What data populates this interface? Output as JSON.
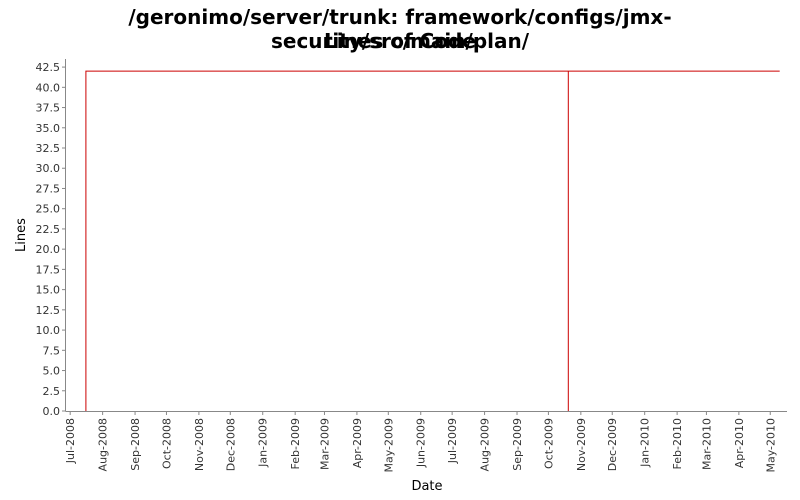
{
  "chart_data": {
    "type": "line",
    "title_lines": [
      "/geronimo/server/trunk: framework/configs/jmx-security/src/main/plan/",
      "Lines of Code"
    ],
    "xlabel": "Date",
    "ylabel": "Lines",
    "ylim": [
      0,
      43.5
    ],
    "y_ticks": [
      "0.0",
      "2.5",
      "5.0",
      "7.5",
      "10.0",
      "12.5",
      "15.0",
      "17.5",
      "20.0",
      "22.5",
      "25.0",
      "27.5",
      "30.0",
      "32.5",
      "35.0",
      "37.5",
      "40.0",
      "42.5"
    ],
    "x_ticks": [
      "Jul-2008",
      "Aug-2008",
      "Sep-2008",
      "Oct-2008",
      "Nov-2008",
      "Dec-2008",
      "Jan-2009",
      "Feb-2009",
      "Mar-2009",
      "Apr-2009",
      "May-2009",
      "Jun-2009",
      "Jul-2009",
      "Aug-2009",
      "Sep-2009",
      "Oct-2009",
      "Nov-2009",
      "Dec-2009",
      "Jan-2010",
      "Feb-2010",
      "Mar-2010",
      "Apr-2010",
      "May-2010"
    ],
    "x_range": [
      "2008-06-27",
      "2010-05-17"
    ],
    "series": [
      {
        "color": "#cc0000",
        "points": [
          {
            "x": "2008-07-16",
            "y": 0
          },
          {
            "x": "2008-07-16",
            "y": 42
          },
          {
            "x": "2009-10-20",
            "y": 42
          },
          {
            "x": "2009-10-20",
            "y": 0
          },
          {
            "x": "2009-10-20",
            "y": 42
          },
          {
            "x": "2010-05-10",
            "y": 42
          }
        ]
      }
    ],
    "grid": false,
    "legend": "none"
  },
  "colors": {
    "background": "#ffffff",
    "plot_background": "#ffffff",
    "axis": "#888888",
    "series": "#cc0000"
  }
}
